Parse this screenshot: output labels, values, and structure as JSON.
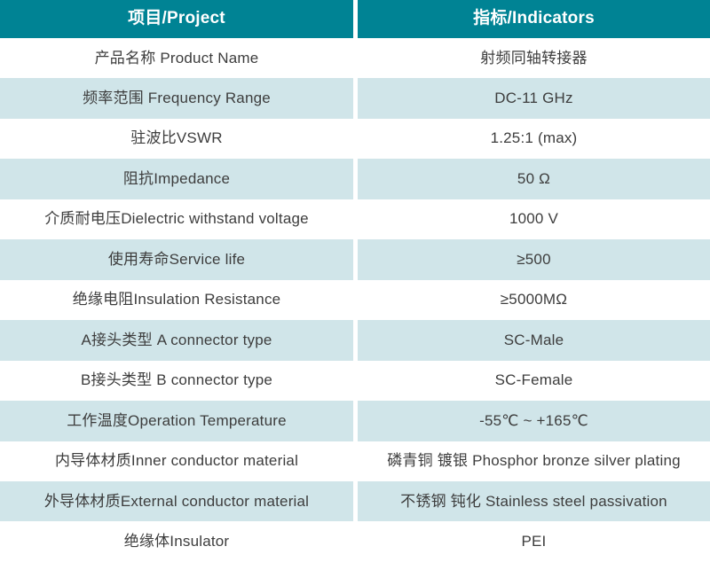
{
  "table": {
    "colors": {
      "header_bg": "#008394",
      "row_alt_bg": "#d0e5e9",
      "header_text": "#ffffff",
      "body_text": "#3d3d3d",
      "divider": "#ffffff"
    },
    "header": {
      "project": "项目/Project",
      "indicators": "指标/Indicators"
    },
    "rows": [
      {
        "project": "产品名称 Product Name",
        "indicator": "射频同轴转接器"
      },
      {
        "project": "频率范围 Frequency Range",
        "indicator": "DC-11 GHz"
      },
      {
        "project": "驻波比VSWR",
        "indicator": "1.25:1 (max)"
      },
      {
        "project": "阻抗Impedance",
        "indicator": "50 Ω"
      },
      {
        "project": "介质耐电压Dielectric withstand voltage",
        "indicator": "1000 V"
      },
      {
        "project": "使用寿命Service life",
        "indicator": "≥500"
      },
      {
        "project": "绝缘电阻Insulation Resistance",
        "indicator": "≥5000MΩ"
      },
      {
        "project": "A接头类型 A connector type",
        "indicator": "SC-Male"
      },
      {
        "project": "B接头类型 B connector type",
        "indicator": "SC-Female"
      },
      {
        "project": "工作温度Operation Temperature",
        "indicator": "-55℃ ~ +165℃"
      },
      {
        "project": "内导体材质Inner conductor material",
        "indicator": "磷青铜 镀银 Phosphor bronze silver plating"
      },
      {
        "project": "外导体材质External conductor material",
        "indicator": "不锈钢 钝化 Stainless steel passivation"
      },
      {
        "project": "绝缘体Insulator",
        "indicator": "PEI"
      }
    ]
  }
}
